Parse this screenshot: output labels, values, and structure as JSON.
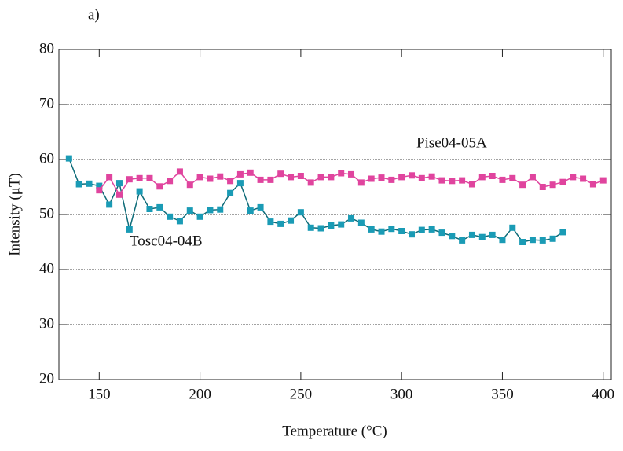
{
  "chart_data": {
    "type": "line",
    "panel_label": "a)",
    "x_label": "Temperature (°C)",
    "y_label": "Intensity (μT)",
    "xlim": [
      130,
      404
    ],
    "xticks": [
      150,
      200,
      250,
      300,
      350,
      400
    ],
    "ylim": [
      20,
      80
    ],
    "yticks": [
      20,
      30,
      40,
      50,
      60,
      70,
      80
    ],
    "grid": true,
    "series": [
      {
        "name": "Tosc04-04B",
        "color": "#1a9bb5",
        "line_color": "#0d6b78",
        "x": [
          135,
          140,
          145,
          150,
          155,
          160,
          165,
          170,
          175,
          180,
          185,
          190,
          195,
          200,
          205,
          210,
          215,
          220,
          225,
          230,
          235,
          240,
          245,
          250,
          255,
          260,
          265,
          270,
          275,
          280,
          285,
          290,
          295,
          300,
          305,
          310,
          315,
          320,
          325,
          330,
          335,
          340,
          345,
          350,
          355,
          360,
          365,
          370,
          375,
          380
        ],
        "values": [
          60.2,
          55.5,
          55.6,
          55.2,
          51.8,
          55.7,
          47.3,
          54.2,
          51.0,
          51.3,
          49.6,
          48.8,
          50.7,
          49.6,
          50.8,
          50.9,
          53.9,
          55.7,
          50.7,
          51.3,
          48.7,
          48.3,
          48.9,
          50.4,
          47.6,
          47.5,
          48.0,
          48.2,
          49.3,
          48.5,
          47.3,
          46.9,
          47.4,
          47.0,
          46.4,
          47.2,
          47.3,
          46.7,
          46.1,
          45.3,
          46.3,
          45.9,
          46.3,
          45.4,
          47.6,
          45.0,
          45.4,
          45.3,
          45.6,
          46.8
        ]
      },
      {
        "name": "Pise04-05A",
        "color": "#e0449e",
        "line_color": "#e0449e",
        "x": [
          150,
          155,
          160,
          165,
          170,
          175,
          180,
          185,
          190,
          195,
          200,
          205,
          210,
          215,
          220,
          225,
          230,
          235,
          240,
          245,
          250,
          255,
          260,
          265,
          270,
          275,
          280,
          285,
          290,
          295,
          300,
          305,
          310,
          315,
          320,
          325,
          330,
          335,
          340,
          345,
          350,
          355,
          360,
          365,
          370,
          375,
          380,
          385,
          390,
          395,
          400
        ],
        "values": [
          54.4,
          56.8,
          53.6,
          56.4,
          56.6,
          56.6,
          55.1,
          56.1,
          57.8,
          55.4,
          56.8,
          56.5,
          56.9,
          56.1,
          57.3,
          57.6,
          56.3,
          56.3,
          57.4,
          56.8,
          57.0,
          55.8,
          56.8,
          56.8,
          57.5,
          57.3,
          55.8,
          56.5,
          56.7,
          56.3,
          56.8,
          57.1,
          56.6,
          56.9,
          56.2,
          56.1,
          56.2,
          55.5,
          56.8,
          57.0,
          56.3,
          56.6,
          55.4,
          56.8,
          55.0,
          55.4,
          55.9,
          56.8,
          56.5,
          55.5,
          56.2
        ]
      }
    ]
  }
}
